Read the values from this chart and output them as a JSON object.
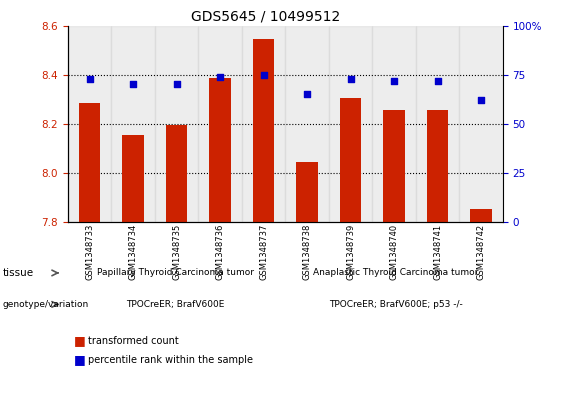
{
  "title": "GDS5645 / 10499512",
  "samples": [
    "GSM1348733",
    "GSM1348734",
    "GSM1348735",
    "GSM1348736",
    "GSM1348737",
    "GSM1348738",
    "GSM1348739",
    "GSM1348740",
    "GSM1348741",
    "GSM1348742"
  ],
  "bar_values": [
    8.285,
    8.155,
    8.195,
    8.385,
    8.545,
    8.045,
    8.305,
    8.255,
    8.255,
    7.855
  ],
  "percentile_values": [
    73,
    70,
    70,
    74,
    75,
    65,
    73,
    72,
    72,
    62
  ],
  "ylim_left": [
    7.8,
    8.6
  ],
  "ylim_right": [
    0,
    100
  ],
  "yticks_left": [
    7.8,
    8.0,
    8.2,
    8.4,
    8.6
  ],
  "yticks_right": [
    0,
    25,
    50,
    75,
    100
  ],
  "bar_color": "#cc2200",
  "dot_color": "#0000cc",
  "left_tick_color": "#cc2200",
  "right_tick_color": "#0000cc",
  "tissue_labels": [
    "Papillary Thyroid Carcinoma tumor",
    "Anaplastic Thyroid Carcinoma tumor"
  ],
  "tissue_color": "#90ee90",
  "tissue_group1_count": 5,
  "tissue_group2_count": 5,
  "genotype_labels": [
    "TPOCreER; BrafV600E",
    "TPOCreER; BrafV600E; p53 -/-"
  ],
  "genotype_color": "#ee82ee",
  "legend_bar_label": "transformed count",
  "legend_dot_label": "percentile rank within the sample",
  "col_bg_color": "#d3d3d3",
  "col_bg_alpha": 0.4
}
